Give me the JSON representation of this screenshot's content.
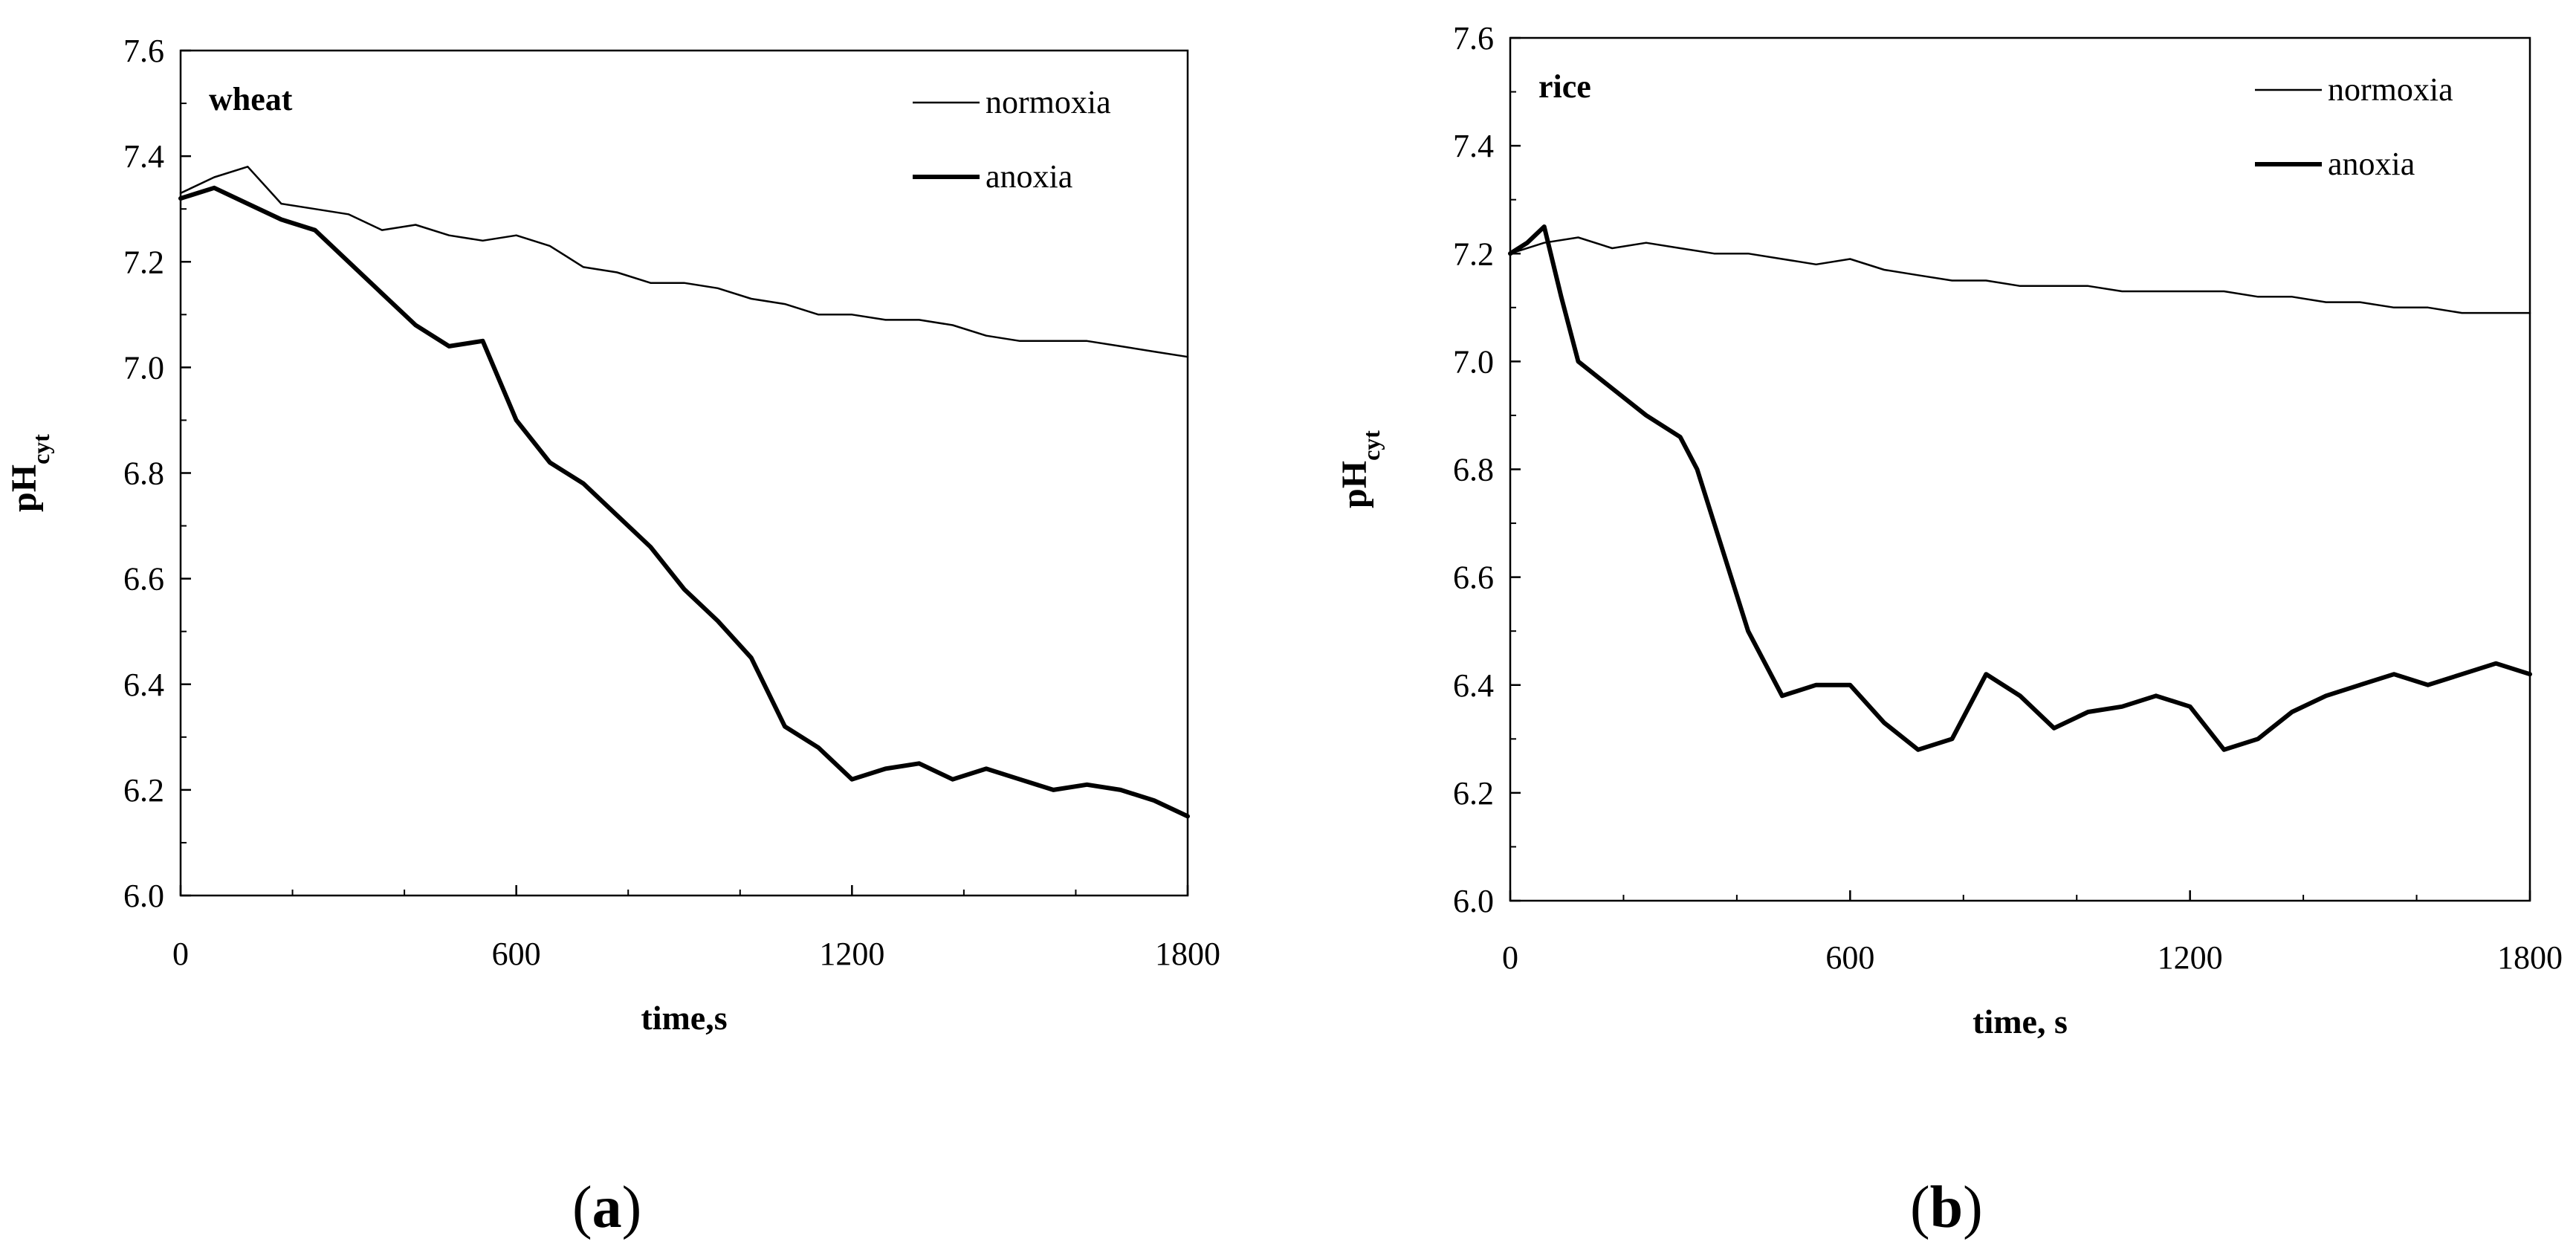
{
  "chart_data": [
    {
      "type": "line",
      "panel": "a",
      "title": "wheat",
      "xlabel": "time,s",
      "ylabel": "pH",
      "ylabel_sub": "cyt",
      "xlim": [
        0,
        1800
      ],
      "ylim": [
        6.0,
        7.6
      ],
      "xticks": [
        0,
        600,
        1200,
        1800
      ],
      "yticks": [
        6.0,
        6.2,
        6.4,
        6.6,
        6.8,
        7.0,
        7.2,
        7.4,
        7.6
      ],
      "grid": false,
      "legend_position": "top-right",
      "series": [
        {
          "name": "normoxia",
          "style": "thin",
          "x": [
            0,
            60,
            120,
            180,
            240,
            300,
            360,
            420,
            480,
            540,
            600,
            660,
            720,
            780,
            840,
            900,
            960,
            1020,
            1080,
            1140,
            1200,
            1260,
            1320,
            1380,
            1440,
            1500,
            1560,
            1620,
            1680,
            1740,
            1800
          ],
          "y": [
            7.33,
            7.36,
            7.38,
            7.31,
            7.3,
            7.29,
            7.26,
            7.27,
            7.25,
            7.24,
            7.25,
            7.23,
            7.19,
            7.18,
            7.16,
            7.16,
            7.15,
            7.13,
            7.12,
            7.1,
            7.1,
            7.09,
            7.09,
            7.08,
            7.06,
            7.05,
            7.05,
            7.05,
            7.04,
            7.03,
            7.02
          ]
        },
        {
          "name": "anoxia",
          "style": "thick",
          "x": [
            0,
            60,
            120,
            180,
            240,
            300,
            360,
            420,
            480,
            540,
            600,
            660,
            720,
            780,
            840,
            900,
            960,
            1020,
            1080,
            1140,
            1200,
            1260,
            1320,
            1380,
            1440,
            1500,
            1560,
            1620,
            1680,
            1740,
            1800
          ],
          "y": [
            7.32,
            7.34,
            7.31,
            7.28,
            7.26,
            7.2,
            7.14,
            7.08,
            7.04,
            7.05,
            6.9,
            6.82,
            6.78,
            6.72,
            6.66,
            6.58,
            6.52,
            6.45,
            6.32,
            6.28,
            6.22,
            6.24,
            6.25,
            6.22,
            6.24,
            6.22,
            6.2,
            6.21,
            6.2,
            6.18,
            6.15
          ]
        }
      ]
    },
    {
      "type": "line",
      "panel": "b",
      "title": "rice",
      "xlabel": "time, s",
      "ylabel": "pH",
      "ylabel_sub": "cyt",
      "xlim": [
        0,
        1800
      ],
      "ylim": [
        6.0,
        7.6
      ],
      "xticks": [
        0,
        600,
        1200,
        1800
      ],
      "yticks": [
        6.0,
        6.2,
        6.4,
        6.6,
        6.8,
        7.0,
        7.2,
        7.4,
        7.6
      ],
      "grid": false,
      "legend_position": "top-right",
      "series": [
        {
          "name": "normoxia",
          "style": "thin",
          "x": [
            0,
            60,
            120,
            180,
            240,
            300,
            360,
            420,
            480,
            540,
            600,
            660,
            720,
            780,
            840,
            900,
            960,
            1020,
            1080,
            1140,
            1200,
            1260,
            1320,
            1380,
            1440,
            1500,
            1560,
            1620,
            1680,
            1740,
            1800
          ],
          "y": [
            7.2,
            7.22,
            7.23,
            7.21,
            7.22,
            7.21,
            7.2,
            7.2,
            7.19,
            7.18,
            7.19,
            7.17,
            7.16,
            7.15,
            7.15,
            7.14,
            7.14,
            7.14,
            7.13,
            7.13,
            7.13,
            7.13,
            7.12,
            7.12,
            7.11,
            7.11,
            7.1,
            7.1,
            7.09,
            7.09,
            7.09
          ]
        },
        {
          "name": "anoxia",
          "style": "thick",
          "x": [
            0,
            30,
            60,
            90,
            120,
            180,
            240,
            300,
            330,
            360,
            420,
            480,
            540,
            600,
            660,
            720,
            780,
            840,
            900,
            960,
            1020,
            1080,
            1140,
            1200,
            1260,
            1320,
            1380,
            1440,
            1500,
            1560,
            1620,
            1680,
            1740,
            1800
          ],
          "y": [
            7.2,
            7.22,
            7.25,
            7.12,
            7.0,
            6.95,
            6.9,
            6.86,
            6.8,
            6.7,
            6.5,
            6.38,
            6.4,
            6.4,
            6.33,
            6.28,
            6.3,
            6.42,
            6.38,
            6.32,
            6.35,
            6.36,
            6.38,
            6.36,
            6.28,
            6.3,
            6.35,
            6.38,
            6.4,
            6.42,
            6.4,
            6.42,
            6.44,
            6.42
          ]
        }
      ]
    }
  ],
  "panel_labels": {
    "a": {
      "open": "(",
      "letter": "a",
      "close": ")"
    },
    "b": {
      "open": "(",
      "letter": "b",
      "close": ")"
    }
  }
}
